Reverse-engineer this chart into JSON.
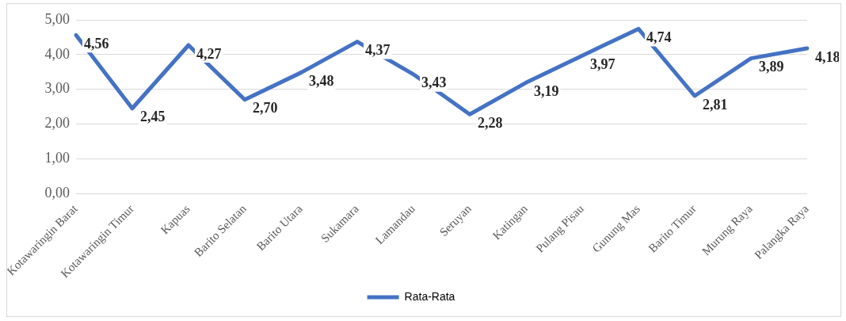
{
  "chart_data": {
    "type": "line",
    "categories": [
      "Kotawaringin Barat",
      "Kotawaringin Timur",
      "Kapuas",
      "Barito Selatan",
      "Barito Utara",
      "Sukamara",
      "Lamandau",
      "Seruyan",
      "Katingan",
      "Pulang Pisau",
      "Gunung Mas",
      "Barito Timur",
      "Murung Raya",
      "Palangka Raya"
    ],
    "series": [
      {
        "name": "Rata-Rata",
        "color": "#4472c4",
        "values": [
          4.56,
          2.45,
          4.27,
          2.7,
          3.48,
          4.37,
          3.43,
          2.28,
          3.19,
          3.97,
          4.74,
          2.81,
          3.89,
          4.18
        ],
        "value_labels": [
          "4,56",
          "2,45",
          "4,27",
          "2,70",
          "3,48",
          "4,37",
          "3,43",
          "2,28",
          "3,19",
          "3,97",
          "4,74",
          "2,81",
          "3,89",
          "4,18"
        ]
      }
    ],
    "ylim": [
      0,
      5
    ],
    "yticks": [
      {
        "value": 0,
        "label": "0,00"
      },
      {
        "value": 1,
        "label": "1,00"
      },
      {
        "value": 2,
        "label": "2,00"
      },
      {
        "value": 3,
        "label": "3,00"
      },
      {
        "value": 4,
        "label": "4,00"
      },
      {
        "value": 5,
        "label": "5,00"
      }
    ],
    "grid": "y",
    "legend": "bottom",
    "marker": "none",
    "line_style": "solid"
  }
}
